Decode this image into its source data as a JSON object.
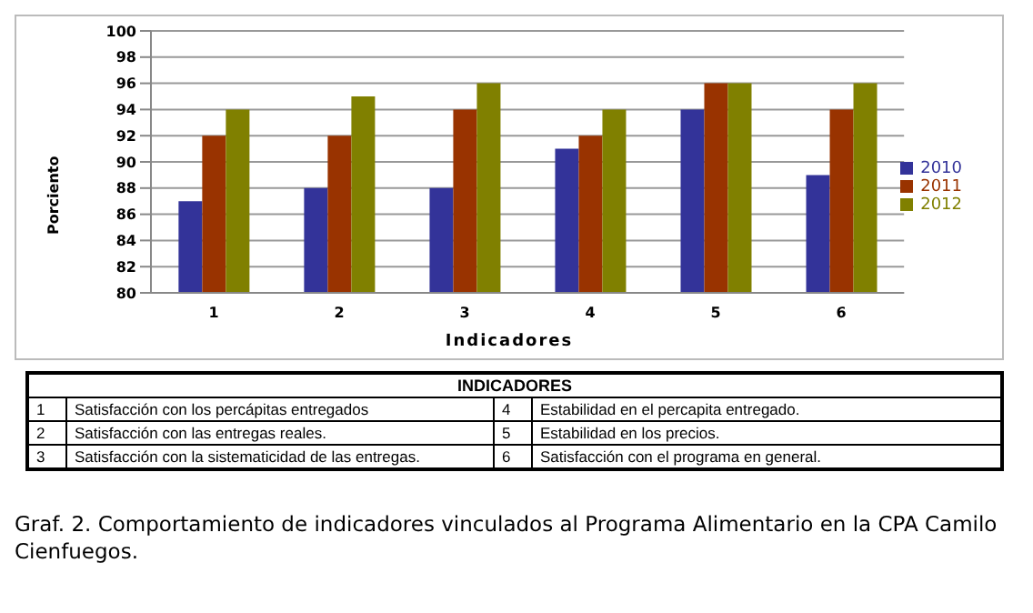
{
  "chart_data": {
    "type": "bar",
    "xlabel": "Indicadores",
    "ylabel": "Porciento",
    "categories": [
      "1",
      "2",
      "3",
      "4",
      "5",
      "6"
    ],
    "series": [
      {
        "name": "2010",
        "color": "#333399",
        "values": [
          87,
          88,
          88,
          91,
          94,
          89
        ]
      },
      {
        "name": "2011",
        "color": "#993300",
        "values": [
          92,
          92,
          94,
          92,
          96,
          94
        ]
      },
      {
        "name": "2012",
        "color": "#808000",
        "values": [
          94,
          95,
          96,
          94,
          96,
          96
        ]
      }
    ],
    "ylim": [
      80,
      100
    ],
    "yticks": [
      80,
      82,
      84,
      86,
      88,
      90,
      92,
      94,
      96,
      98,
      100
    ],
    "grid": "y",
    "legend": "right",
    "annotations": [
      "INDICADORES",
      "Satisfacción con los percápitas entregados",
      "Satisfacción con las entregas reales.",
      "Satisfacción con la sistematicidad de las entregas.",
      "Estabilidad en el percapita entregado.",
      "Estabilidad en los precios.",
      "Satisfacción con el programa en general.",
      "Graf. 2. Comportamiento de indicadores vinculados al Programa Alimentario en la CPA Camilo Cienfuegos."
    ]
  }
}
